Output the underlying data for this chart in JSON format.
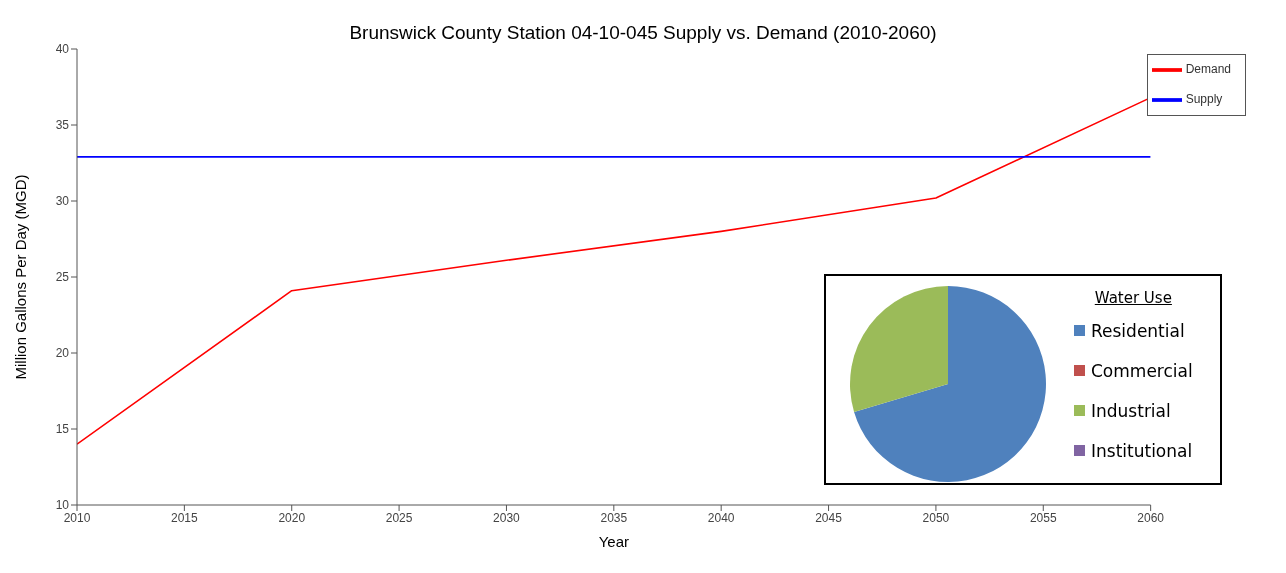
{
  "chart_data": [
    {
      "type": "line",
      "title": "Brunswick County Station 04-10-045 Supply vs. Demand (2010-2060)",
      "xlabel": "Year",
      "ylabel": "Million Gallons Per Day (MGD)",
      "series": [
        {
          "name": "Demand",
          "color": "#ff0000",
          "x": [
            2010,
            2020,
            2030,
            2040,
            2050,
            2060
          ],
          "values": [
            14.0,
            24.1,
            26.1,
            28.0,
            30.2,
            36.8
          ]
        },
        {
          "name": "Supply",
          "color": "#0000ff",
          "x": [
            2010,
            2060
          ],
          "values": [
            32.9,
            32.9
          ]
        }
      ],
      "xlim": [
        2010,
        2060
      ],
      "xticks": [
        2010,
        2015,
        2020,
        2025,
        2030,
        2035,
        2040,
        2045,
        2050,
        2055,
        2060
      ],
      "ylim": [
        10,
        40
      ],
      "yticks": [
        10,
        15,
        20,
        25,
        30,
        35,
        40
      ],
      "grid": false,
      "legend": "top right"
    },
    {
      "type": "pie",
      "legend_title": "Water Use",
      "categories": [
        "Residential",
        "Commercial",
        "Industrial",
        "Institutional"
      ],
      "values": [
        70.4,
        0,
        29.6,
        0
      ],
      "colors": [
        "#4f81bd",
        "#c0504d",
        "#9bbb59",
        "#8064a2"
      ],
      "legend": "right"
    }
  ]
}
